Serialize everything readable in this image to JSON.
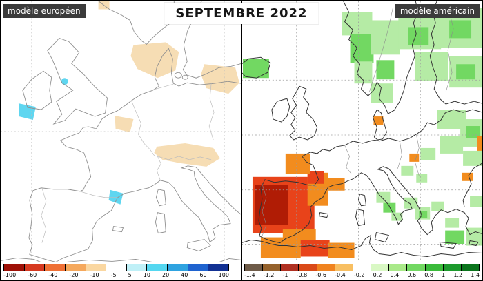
{
  "title": "SEPTEMBRE 2022",
  "left_panel": {
    "label": "modèle européen",
    "colorbar": {
      "labels": [
        "-100",
        "-60",
        "-40",
        "-20",
        "-10",
        "-5",
        "5",
        "10",
        "20",
        "40",
        "60",
        "100"
      ],
      "colors": [
        "#9e1006",
        "#d63920",
        "#ef7035",
        "#f5a85c",
        "#fad7a1",
        "#ffffff",
        "#bff0f7",
        "#55d7f0",
        "#2fa3e0",
        "#1f63cf",
        "#123193"
      ]
    },
    "anomaly_colors": {
      "dry_light": "#f6ddb4",
      "wet_light": "#5fd6f0"
    }
  },
  "right_panel": {
    "label": "modèle américain",
    "colorbar": {
      "labels": [
        "-1.4",
        "-1.2",
        "-1",
        "-0.8",
        "-0.6",
        "-0.4",
        "-0.2",
        "0.2",
        "0.4",
        "0.6",
        "0.8",
        "1",
        "1.2",
        "1.4"
      ],
      "colors": [
        "#6e5b48",
        "#95622c",
        "#b03021",
        "#da4a18",
        "#f0831f",
        "#f8bf62",
        "#ffffff",
        "#d9f8c4",
        "#a9e989",
        "#72d862",
        "#3aba3a",
        "#1c9a2c",
        "#0a741c"
      ]
    },
    "anomaly_colors": {
      "green_light": "#b5eba5",
      "green_mid": "#72d862",
      "orange": "#f28c1e",
      "red": "#e8431a",
      "dark_red": "#b01c05"
    }
  }
}
